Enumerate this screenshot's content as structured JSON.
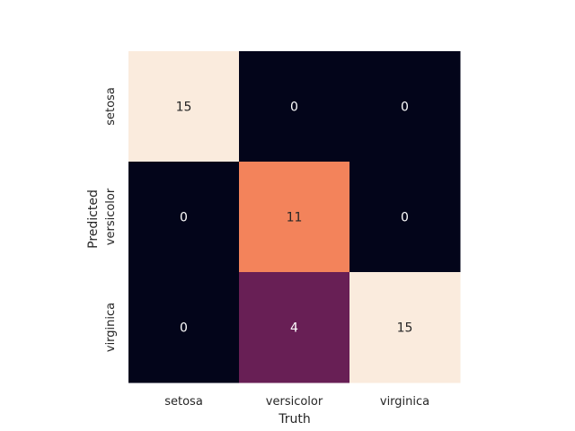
{
  "chart_data": {
    "type": "heatmap",
    "x_categories": [
      "setosa",
      "versicolor",
      "virginica"
    ],
    "y_categories": [
      "setosa",
      "versicolor",
      "virginica"
    ],
    "values": [
      [
        15,
        0,
        0
      ],
      [
        0,
        11,
        0
      ],
      [
        0,
        4,
        15
      ]
    ],
    "xlabel": "Truth",
    "ylabel": "Predicted",
    "vmin": 0,
    "vmax": 15,
    "colormap": "rocket",
    "colorbar": false
  }
}
